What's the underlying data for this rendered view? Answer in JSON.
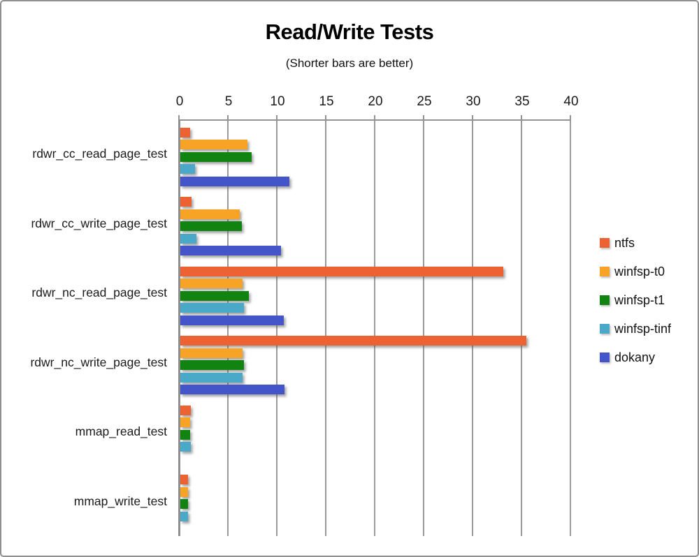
{
  "chart_data": {
    "type": "bar",
    "orientation": "horizontal",
    "title": "Read/Write Tests",
    "subtitle": "(Shorter bars are better)",
    "categories": [
      "rdwr_cc_read_page_test",
      "rdwr_cc_write_page_test",
      "rdwr_nc_read_page_test",
      "rdwr_nc_write_page_test",
      "mmap_read_test",
      "mmap_write_test"
    ],
    "series": [
      {
        "name": "ntfs",
        "color": "#EC6232",
        "values": [
          1.0,
          1.2,
          33.0,
          35.4,
          1.1,
          0.8
        ]
      },
      {
        "name": "winfsp-t0",
        "color": "#F7A426",
        "values": [
          6.9,
          6.1,
          6.4,
          6.4,
          1.0,
          0.8
        ]
      },
      {
        "name": "winfsp-t1",
        "color": "#108310",
        "values": [
          7.3,
          6.3,
          7.0,
          6.5,
          1.0,
          0.85
        ]
      },
      {
        "name": "winfsp-tinf",
        "color": "#4AA9C8",
        "values": [
          1.5,
          1.7,
          6.5,
          6.4,
          1.1,
          0.8
        ]
      },
      {
        "name": "dokany",
        "color": "#4355C8",
        "values": [
          11.2,
          10.3,
          10.6,
          10.7,
          0,
          0
        ]
      }
    ],
    "xlim": [
      0,
      40
    ],
    "x_ticks": [
      0,
      5,
      10,
      15,
      20,
      25,
      30,
      35,
      40
    ],
    "grid": true,
    "legend_position": "right",
    "axis_color": "#949494",
    "gridline_color": "#9a9a9a"
  }
}
